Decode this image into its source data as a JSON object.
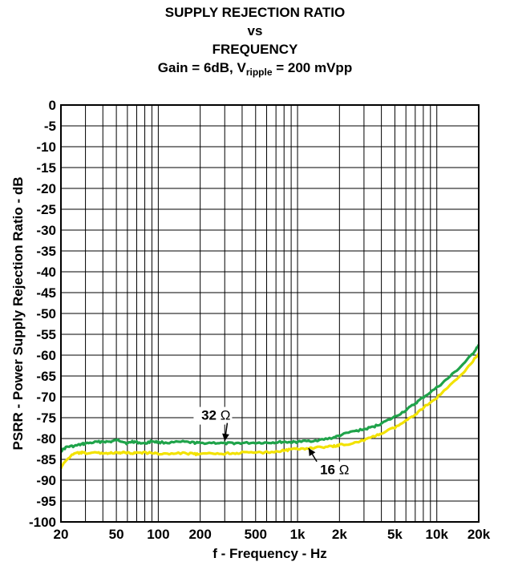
{
  "chart_data": {
    "type": "line",
    "title": "SUPPLY REJECTION RATIO",
    "title_line2": "vs",
    "title_line3": "FREQUENCY",
    "subtitle_prefix": "Gain = 6dB, V",
    "subtitle_sub": "ripple",
    "subtitle_suffix": " = 200 mVpp",
    "xlabel": "f - Frequency - Hz",
    "ylabel": "PSRR - Power Supply Rejection Ratio - dB",
    "xscale": "log",
    "xlim": [
      20,
      20000
    ],
    "ylim": [
      -100,
      0
    ],
    "grid": true,
    "x_ticks": [
      {
        "v": 20,
        "label": "20"
      },
      {
        "v": 50,
        "label": "50"
      },
      {
        "v": 100,
        "label": "100"
      },
      {
        "v": 200,
        "label": "200"
      },
      {
        "v": 500,
        "label": "500"
      },
      {
        "v": 1000,
        "label": "1k"
      },
      {
        "v": 2000,
        "label": "2k"
      },
      {
        "v": 5000,
        "label": "5k"
      },
      {
        "v": 10000,
        "label": "10k"
      },
      {
        "v": 20000,
        "label": "20k"
      }
    ],
    "y_ticks": [
      0,
      -5,
      -10,
      -15,
      -20,
      -25,
      -30,
      -35,
      -40,
      -45,
      -50,
      -55,
      -60,
      -65,
      -70,
      -75,
      -80,
      -85,
      -90,
      -95,
      -100
    ],
    "y_tick_labels": [
      "0",
      "-5",
      "-10",
      "-15",
      "-20",
      "-25",
      "-30",
      "-35",
      "-40",
      "-45",
      "-50",
      "-55",
      "-60",
      "-65",
      "-70",
      "-75",
      "-80",
      "-85",
      "-90",
      "-95",
      "-100"
    ],
    "series": [
      {
        "name": "32 Ω",
        "color": "#1fa34a",
        "x": [
          20,
          22,
          25,
          28,
          30,
          35,
          40,
          45,
          50,
          55,
          60,
          65,
          70,
          80,
          90,
          100,
          120,
          150,
          180,
          200,
          250,
          300,
          350,
          400,
          500,
          600,
          700,
          800,
          900,
          1000,
          1200,
          1500,
          1800,
          2000,
          2500,
          3000,
          3500,
          4000,
          5000,
          6000,
          7000,
          8000,
          10000,
          12000,
          15000,
          18000,
          20000
        ],
        "y": [
          -83,
          -82,
          -81.8,
          -81.4,
          -81.2,
          -80.9,
          -80.7,
          -80.8,
          -80.4,
          -80.6,
          -81.2,
          -80.7,
          -80.9,
          -81.2,
          -80.6,
          -80.9,
          -81,
          -80.8,
          -81,
          -81.1,
          -81,
          -81.2,
          -81.1,
          -81.1,
          -81,
          -81,
          -80.9,
          -80.8,
          -80.9,
          -80.8,
          -80.6,
          -80.3,
          -79.8,
          -79.3,
          -78.3,
          -77.8,
          -77.2,
          -76.4,
          -74.8,
          -73.2,
          -71.6,
          -70.1,
          -67.8,
          -65.6,
          -62.6,
          -59.8,
          -57.5
        ]
      },
      {
        "name": "16 Ω",
        "color": "#f2e200",
        "x": [
          20,
          22,
          25,
          28,
          30,
          35,
          40,
          45,
          50,
          55,
          60,
          65,
          70,
          80,
          90,
          100,
          120,
          150,
          180,
          200,
          250,
          300,
          350,
          400,
          500,
          600,
          700,
          800,
          900,
          1000,
          1200,
          1500,
          1800,
          2000,
          2500,
          3000,
          3500,
          4000,
          5000,
          6000,
          7000,
          8000,
          10000,
          12000,
          15000,
          18000,
          20000
        ],
        "y": [
          -87,
          -85,
          -83.6,
          -83.4,
          -83.5,
          -83.4,
          -83.5,
          -83.5,
          -83.5,
          -83.4,
          -83.4,
          -83.5,
          -83.4,
          -83.4,
          -83.5,
          -83.6,
          -83.7,
          -83.5,
          -83.7,
          -83.8,
          -83.6,
          -83.6,
          -83.5,
          -83.4,
          -83.4,
          -83.3,
          -83.1,
          -82.9,
          -82.6,
          -82.5,
          -82.3,
          -82.1,
          -81.9,
          -81.6,
          -81.1,
          -80.4,
          -79.6,
          -78.8,
          -77.4,
          -75.8,
          -74.2,
          -72.6,
          -70.2,
          -67.8,
          -64.6,
          -61.6,
          -59.6
        ]
      }
    ],
    "annotations": [
      {
        "label": "32",
        "unit": "Ω",
        "tx": 330,
        "ty": -75.5,
        "ax": 300,
        "ay": -80.6,
        "anchor": "end"
      },
      {
        "label": "16",
        "unit": "Ω",
        "tx": 1450,
        "ty": -88.6,
        "ax": 1200,
        "ay": -82.3,
        "anchor": "start"
      }
    ]
  }
}
